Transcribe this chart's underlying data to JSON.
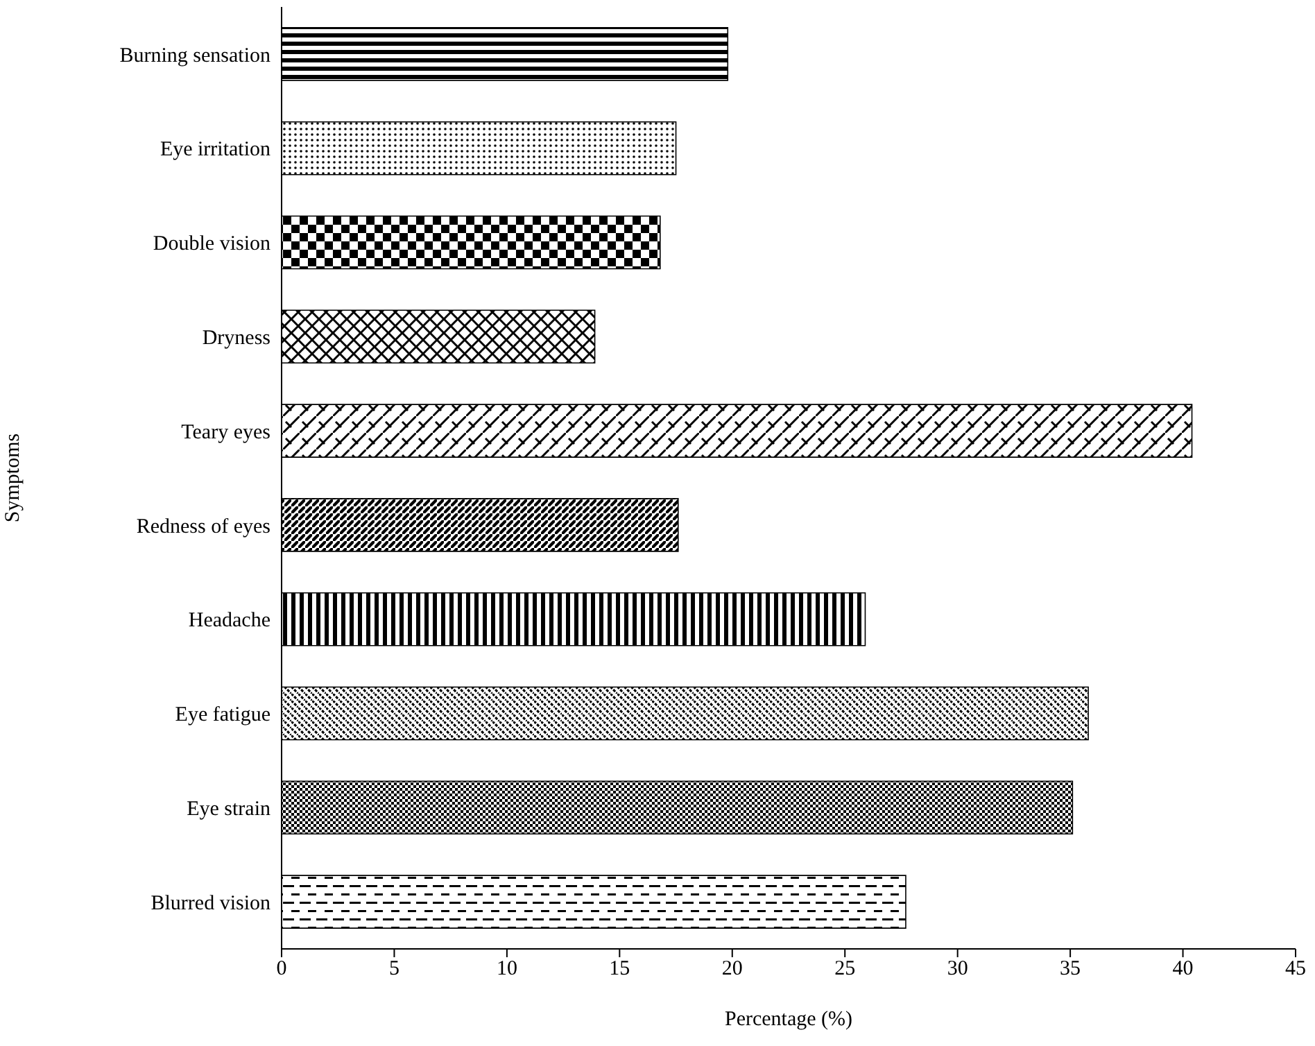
{
  "chart_data": {
    "type": "bar",
    "orientation": "horizontal",
    "xlabel": "Percentage (%)",
    "ylabel": "Symptoms",
    "categories": [
      "Burning sensation",
      "Eye irritation",
      "Double vision",
      "Dryness",
      "Teary eyes",
      "Redness of eyes",
      "Headache",
      "Eye fatigue",
      "Eye strain",
      "Blurred vision"
    ],
    "values": [
      19.8,
      17.5,
      16.8,
      13.9,
      40.4,
      17.6,
      25.9,
      35.8,
      35.1,
      27.7
    ],
    "colors": [
      "#000000",
      "#000000",
      "#000000",
      "#000000",
      "#000000",
      "#000000",
      "#000000",
      "#000000",
      "#000000",
      "#000000"
    ],
    "xlim": [
      0,
      45
    ],
    "xticks": [
      0,
      5,
      10,
      15,
      20,
      25,
      30,
      35,
      40,
      45
    ],
    "grid": false,
    "legend": false
  }
}
